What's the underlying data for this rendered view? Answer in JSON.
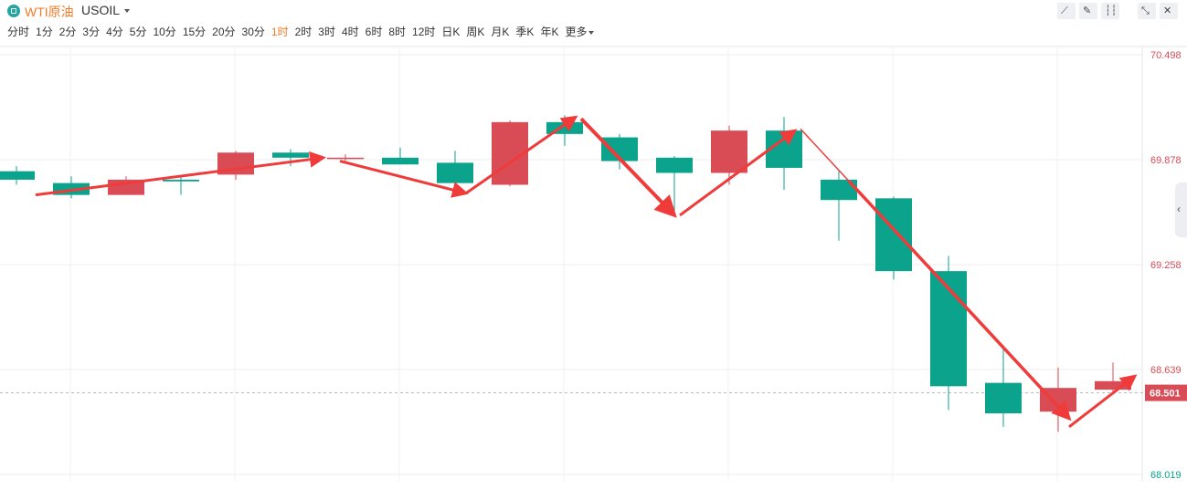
{
  "header": {
    "symbol_name": "WTI原油",
    "symbol_code": "USOIL",
    "tools": [
      "draw-line-icon",
      "pen-icon",
      "candles-icon",
      "shrink-icon",
      "close-icon"
    ]
  },
  "intervals": {
    "items": [
      "分时",
      "1分",
      "2分",
      "3分",
      "4分",
      "5分",
      "10分",
      "15分",
      "20分",
      "30分",
      "1时",
      "2时",
      "3时",
      "4时",
      "6时",
      "8时",
      "12时",
      "日K",
      "周K",
      "月K",
      "季K",
      "年K",
      "更多"
    ],
    "active_index": 10
  },
  "colors": {
    "up": "#d94b55",
    "down": "#0ba38c",
    "arrow": "#f03b3b",
    "grid": "#eeeeee",
    "active_tab": "#f07c2a"
  },
  "chart_data": {
    "type": "candlestick",
    "y_axis": {
      "min": 68.019,
      "max": 70.498,
      "ticks": [
        70.498,
        69.878,
        69.258,
        68.639,
        68.019
      ],
      "tick_labels": [
        "70.498",
        "69.878",
        "69.258",
        "68.639",
        "68.019"
      ],
      "position": "right"
    },
    "current_price": 68.501,
    "current_price_label": "68.501",
    "grid": true,
    "candles": [
      {
        "open": 69.81,
        "close": 69.76,
        "high": 69.84,
        "low": 69.73
      },
      {
        "open": 69.74,
        "close": 69.67,
        "high": 69.78,
        "low": 69.65
      },
      {
        "open": 69.67,
        "close": 69.76,
        "high": 69.78,
        "low": 69.67
      },
      {
        "open": 69.76,
        "close": 69.75,
        "high": 69.78,
        "low": 69.67
      },
      {
        "open": 69.79,
        "close": 69.92,
        "high": 69.93,
        "low": 69.76
      },
      {
        "open": 69.92,
        "close": 69.89,
        "high": 69.94,
        "low": 69.84
      },
      {
        "open": 69.89,
        "close": 69.89,
        "high": 69.91,
        "low": 69.87
      },
      {
        "open": 69.89,
        "close": 69.85,
        "high": 69.95,
        "low": 69.85
      },
      {
        "open": 69.86,
        "close": 69.74,
        "high": 69.93,
        "low": 69.67
      },
      {
        "open": 69.73,
        "close": 70.1,
        "high": 70.11,
        "low": 69.72
      },
      {
        "open": 70.1,
        "close": 70.03,
        "high": 70.14,
        "low": 69.96
      },
      {
        "open": 70.01,
        "close": 69.87,
        "high": 70.03,
        "low": 69.82
      },
      {
        "open": 69.89,
        "close": 69.8,
        "high": 69.9,
        "low": 69.55
      },
      {
        "open": 69.8,
        "close": 70.05,
        "high": 70.08,
        "low": 69.73
      },
      {
        "open": 70.05,
        "close": 69.83,
        "high": 70.13,
        "low": 69.7
      },
      {
        "open": 69.76,
        "close": 69.64,
        "high": 69.82,
        "low": 69.4
      },
      {
        "open": 69.65,
        "close": 69.22,
        "high": 69.66,
        "low": 69.17
      },
      {
        "open": 69.22,
        "close": 68.54,
        "high": 69.31,
        "low": 68.4
      },
      {
        "open": 68.56,
        "close": 68.38,
        "high": 68.76,
        "low": 68.3
      },
      {
        "open": 68.39,
        "close": 68.53,
        "high": 68.65,
        "low": 68.27
      },
      {
        "open": 68.52,
        "close": 68.57,
        "high": 68.68,
        "low": 68.49
      }
    ],
    "annotations": {
      "type": "trend-arrows",
      "segments": [
        {
          "from": [
            0.35,
            69.67
          ],
          "to": [
            5.6,
            69.89
          ]
        },
        {
          "from": [
            5.9,
            69.87
          ],
          "to": [
            8.2,
            69.68
          ]
        },
        {
          "from": [
            8.2,
            69.68
          ],
          "to": [
            10.2,
            70.13
          ]
        },
        {
          "from": [
            10.3,
            70.12
          ],
          "to": [
            12.0,
            69.55
          ],
          "thick": true
        },
        {
          "from": [
            12.1,
            69.55
          ],
          "to": [
            14.2,
            70.05
          ]
        },
        {
          "from": [
            14.3,
            70.06
          ],
          "to": [
            19.2,
            68.35
          ],
          "thin_start": true
        },
        {
          "from": [
            19.2,
            68.3
          ],
          "to": [
            20.4,
            68.6
          ]
        }
      ]
    }
  }
}
